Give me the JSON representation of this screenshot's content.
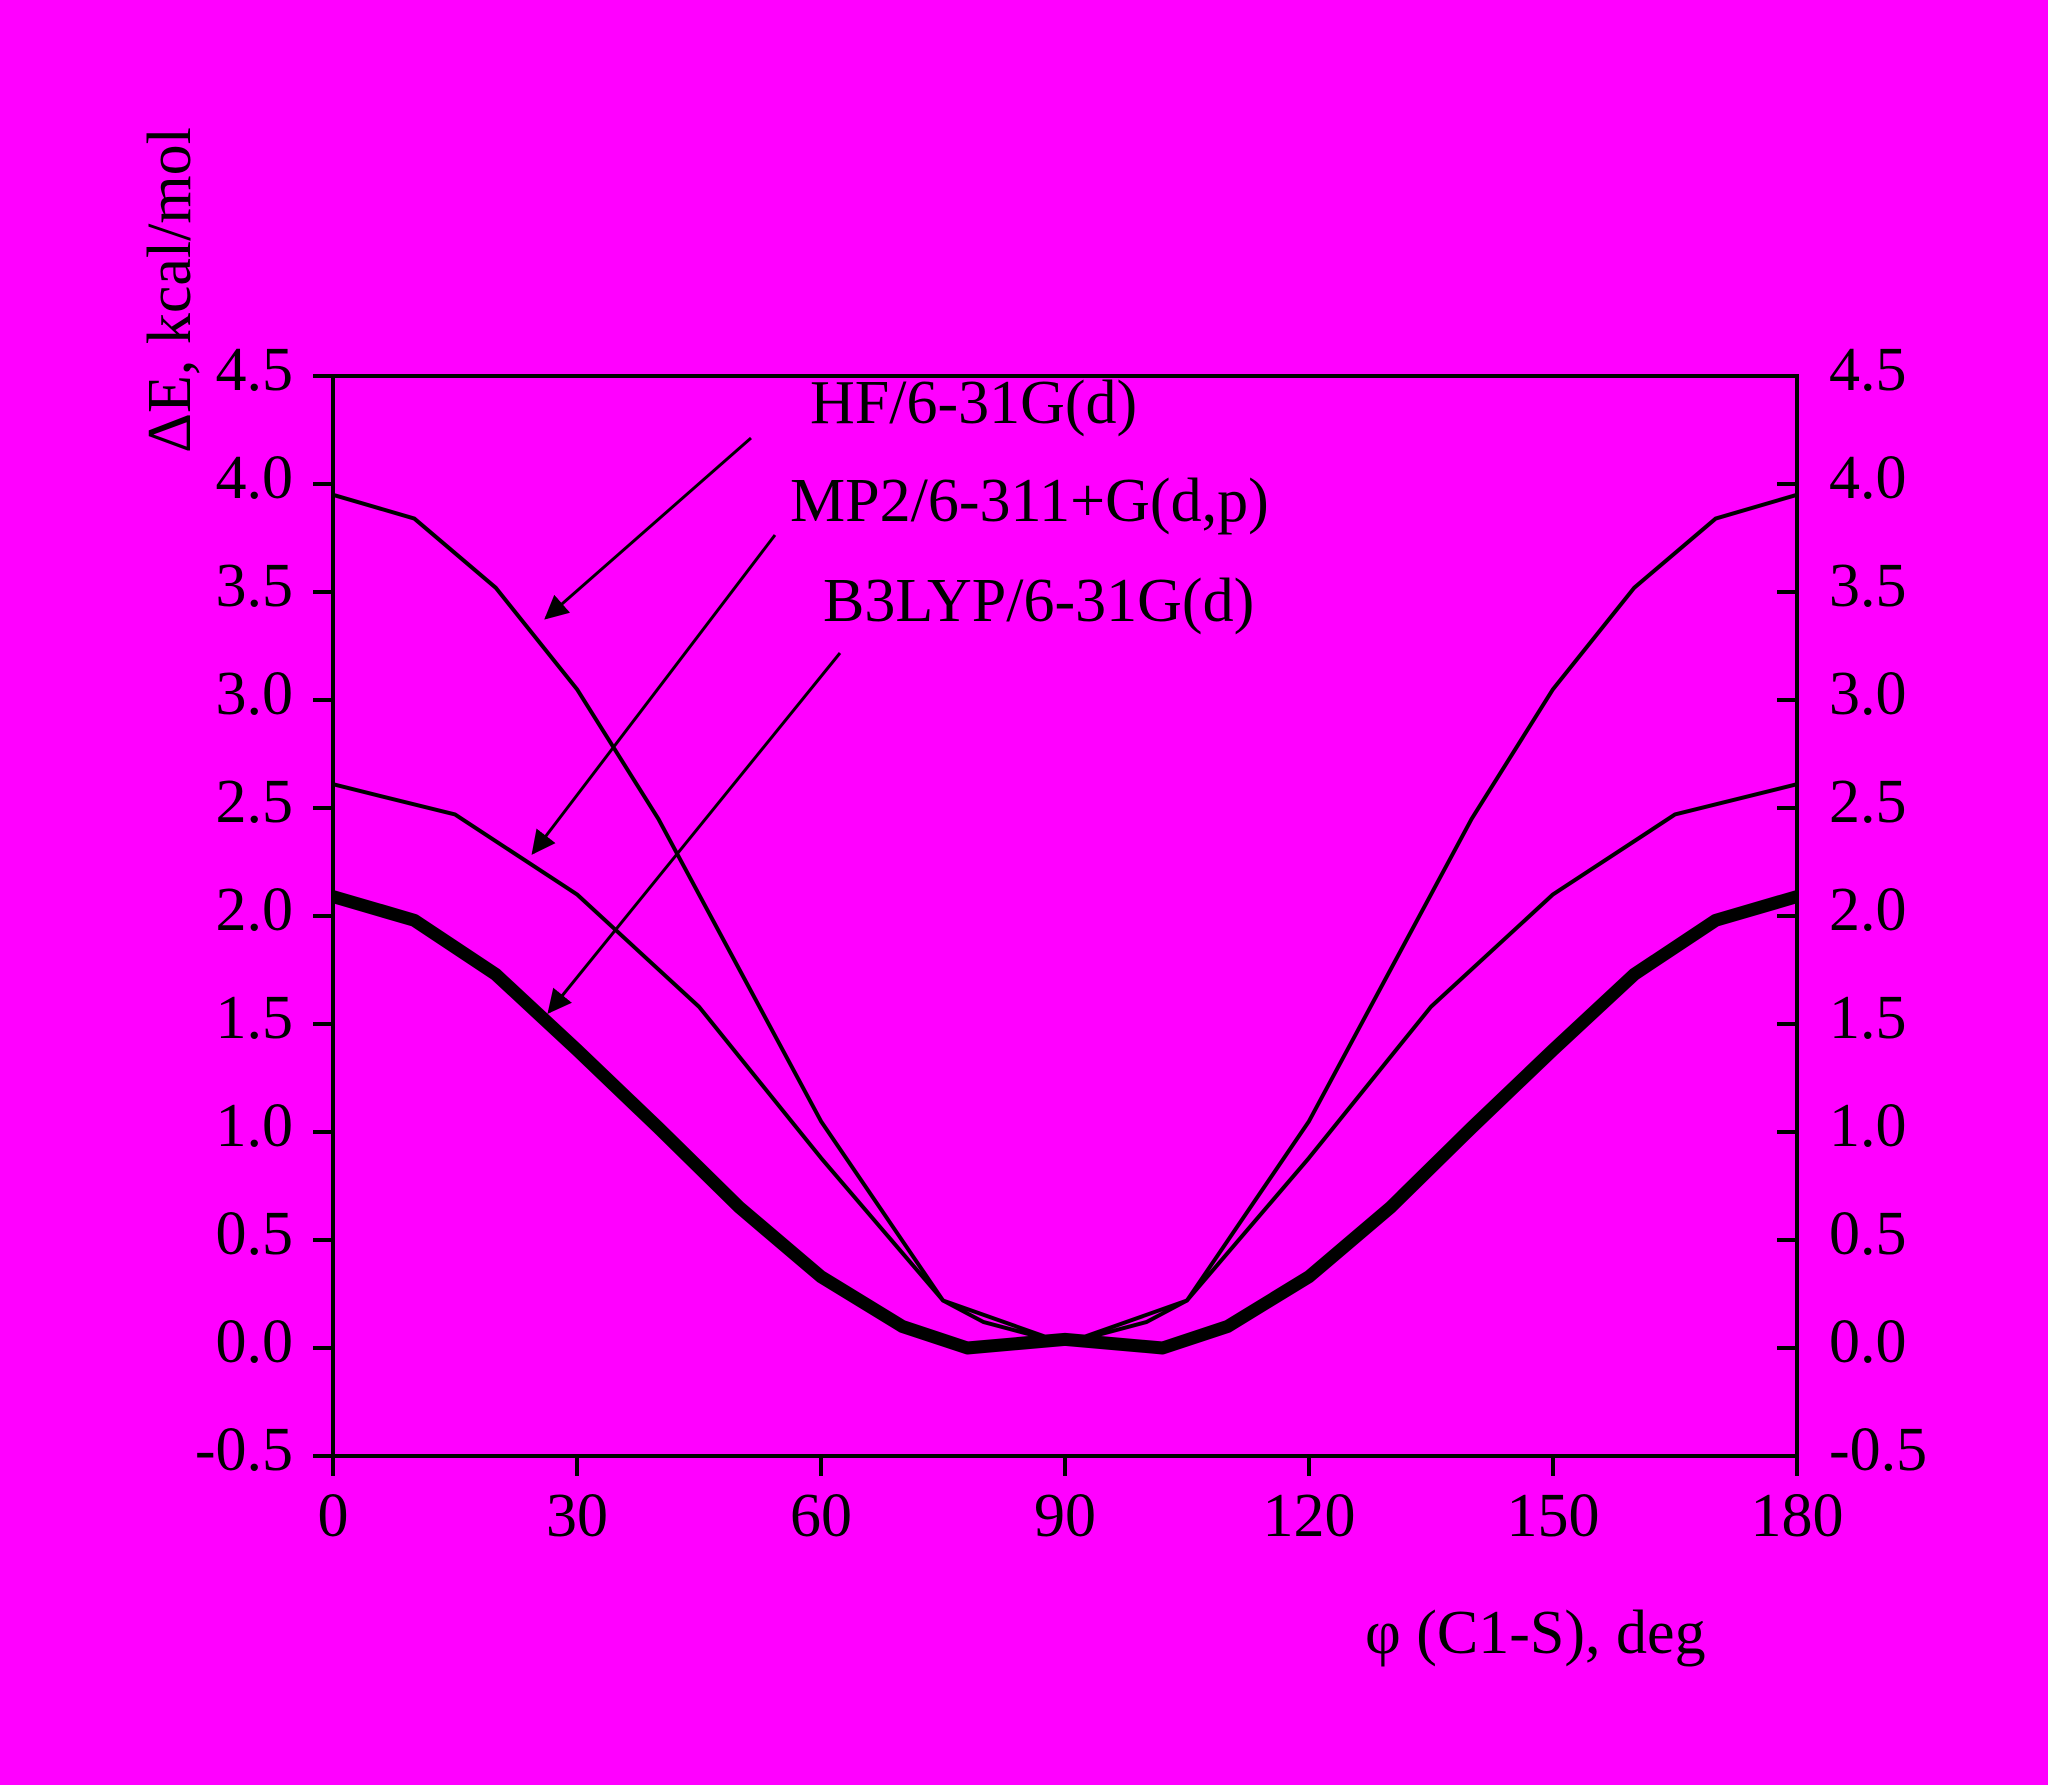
{
  "chart_data": {
    "type": "line",
    "x_label": "φ (C1-S), deg",
    "y_label": "ΔE, kcal/mol",
    "xlim": [
      0,
      180
    ],
    "xticks": [
      0,
      30,
      60,
      90,
      120,
      150,
      180
    ],
    "ylim": [
      -0.5,
      4.5
    ],
    "yticks": [
      -0.5,
      {
        "value": 0,
        "label": "0.0"
      },
      0.5,
      {
        "value": 1,
        "label": "1.0"
      },
      1.5,
      {
        "value": 2,
        "label": "2.0"
      },
      2.5,
      {
        "value": 3,
        "label": "3.0"
      },
      3.5,
      {
        "value": 4,
        "label": "4.0"
      },
      4.5
    ],
    "y2lim": [
      -0.5,
      4.5
    ],
    "y2ticks": [
      -0.5,
      {
        "value": 0,
        "label": "0.0"
      },
      0.5,
      {
        "value": 1,
        "label": "1.0"
      },
      1.5,
      {
        "value": 2,
        "label": "2.0"
      },
      2.5,
      {
        "value": 3,
        "label": "3.0"
      },
      3.5,
      {
        "value": 4,
        "label": "4.0"
      },
      4.5
    ],
    "background": "#ff00ff",
    "series": [
      {
        "name": "HF/6-31G(d)",
        "color": "#000000",
        "width": 4,
        "x": [
          0,
          10,
          20,
          30,
          40,
          45,
          50,
          60,
          75,
          80,
          90,
          100,
          105,
          120,
          130,
          135,
          140,
          150,
          160,
          170,
          180
        ],
        "values": [
          3.95,
          3.84,
          3.52,
          3.05,
          2.45,
          2.1,
          1.75,
          1.05,
          0.22,
          0.12,
          0.02,
          0.12,
          0.22,
          1.05,
          1.75,
          2.1,
          2.45,
          3.05,
          3.52,
          3.84,
          3.95
        ]
      },
      {
        "name": "MP2/6-311+G(d,p)",
        "color": "#000000",
        "width": 4,
        "x": [
          0,
          15,
          30,
          45,
          60,
          75,
          90,
          105,
          120,
          135,
          150,
          165,
          180
        ],
        "values": [
          2.61,
          2.47,
          2.1,
          1.58,
          0.88,
          0.22,
          0.02,
          0.22,
          0.88,
          1.58,
          2.1,
          2.47,
          2.61
        ]
      },
      {
        "name": "B3LYP/6-31G(d)",
        "color": "#000000",
        "width": 13,
        "x": [
          0,
          10,
          20,
          30,
          40,
          50,
          60,
          70,
          78,
          90,
          102,
          110,
          120,
          130,
          140,
          150,
          160,
          170,
          180
        ],
        "values": [
          2.09,
          1.98,
          1.73,
          1.38,
          1.02,
          0.65,
          0.33,
          0.1,
          0.0,
          0.04,
          0.0,
          0.1,
          0.33,
          0.65,
          1.02,
          1.38,
          1.73,
          1.98,
          2.09
        ]
      }
    ]
  }
}
